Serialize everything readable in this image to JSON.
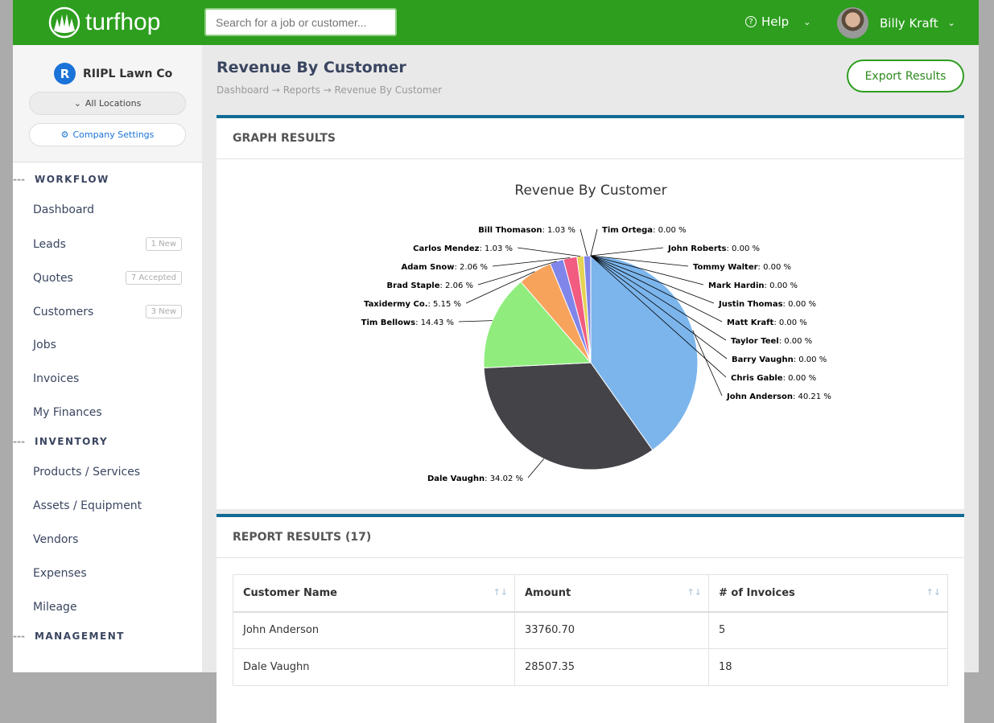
{
  "header": {
    "brand": "turfhop",
    "search_placeholder": "Search for a job or customer...",
    "help": "Help",
    "user": "Billy Kraft"
  },
  "sidebar": {
    "company": "RIIPL Lawn Co",
    "company_initial": "R",
    "locations": "All Locations",
    "settings": "Company Settings",
    "sections": [
      {
        "title": "WORKFLOW",
        "items": [
          {
            "label": "Dashboard"
          },
          {
            "label": "Leads",
            "badge": "1 New"
          },
          {
            "label": "Quotes",
            "badge": "7 Accepted"
          },
          {
            "label": "Customers",
            "badge": "3 New"
          },
          {
            "label": "Jobs"
          },
          {
            "label": "Invoices"
          },
          {
            "label": "My Finances"
          }
        ]
      },
      {
        "title": "INVENTORY",
        "items": [
          {
            "label": "Products / Services"
          },
          {
            "label": "Assets / Equipment"
          },
          {
            "label": "Vendors"
          },
          {
            "label": "Expenses"
          },
          {
            "label": "Mileage"
          }
        ]
      },
      {
        "title": "MANAGEMENT",
        "items": []
      }
    ]
  },
  "page": {
    "title": "Revenue By Customer",
    "breadcrumb": [
      "Dashboard",
      "Reports",
      "Revenue By Customer"
    ],
    "export": "Export Results"
  },
  "graph": {
    "heading": "GRAPH RESULTS"
  },
  "chart_data": {
    "type": "pie",
    "title": "Revenue By Customer",
    "unit": "%",
    "slices": [
      {
        "name": "John Anderson",
        "value": 40.21,
        "color": "#7cb5ec"
      },
      {
        "name": "Dale Vaughn",
        "value": 34.02,
        "color": "#434348"
      },
      {
        "name": "Tim Bellows",
        "value": 14.43,
        "color": "#90ed7d"
      },
      {
        "name": "Taxidermy Co.",
        "value": 5.15,
        "color": "#f7a35c"
      },
      {
        "name": "Brad Staple",
        "value": 2.06,
        "color": "#8085e9"
      },
      {
        "name": "Adam Snow",
        "value": 2.06,
        "color": "#f15c80"
      },
      {
        "name": "Carlos Mendez",
        "value": 1.03,
        "color": "#e4d354"
      },
      {
        "name": "Bill Thomason",
        "value": 1.03,
        "color": "#8085e9"
      },
      {
        "name": "Tim Ortega",
        "value": 0.0
      },
      {
        "name": "John Roberts",
        "value": 0.0
      },
      {
        "name": "Tommy Walter",
        "value": 0.0
      },
      {
        "name": "Mark Hardin",
        "value": 0.0
      },
      {
        "name": "Justin Thomas",
        "value": 0.0
      },
      {
        "name": "Matt Kraft",
        "value": 0.0
      },
      {
        "name": "Taylor Teel",
        "value": 0.0
      },
      {
        "name": "Barry Vaughn",
        "value": 0.0
      },
      {
        "name": "Chris Gable",
        "value": 0.0
      }
    ]
  },
  "report": {
    "heading": "REPORT RESULTS (17)",
    "columns": [
      "Customer Name",
      "Amount",
      "# of Invoices"
    ],
    "rows": [
      [
        "John Anderson",
        "33760.70",
        "5"
      ],
      [
        "Dale Vaughn",
        "28507.35",
        "18"
      ]
    ]
  }
}
